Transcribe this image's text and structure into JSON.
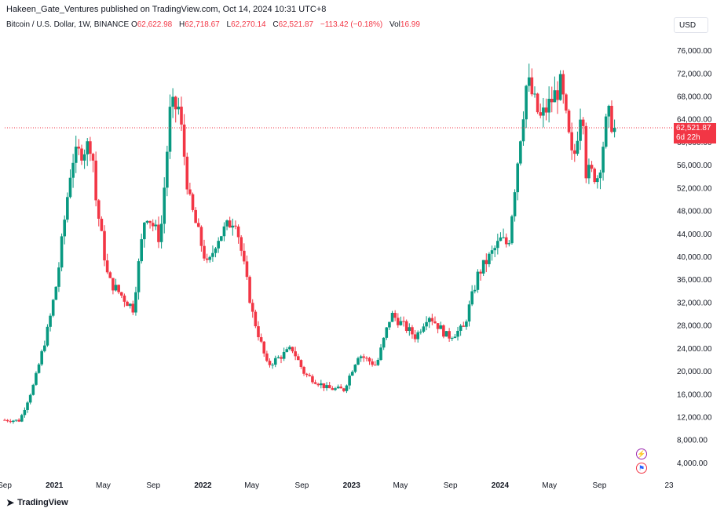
{
  "header": {
    "published": "Hakeen_Gate_Ventures published on TradingView.com, Oct 14, 2024 10:31 UTC+8"
  },
  "legend": {
    "symbol": "Bitcoin / U.S. Dollar, 1W, BINANCE",
    "o_label": "O",
    "o_value": "62,622.98",
    "h_label": "H",
    "h_value": "62,718.67",
    "l_label": "L",
    "l_value": "62,270.14",
    "c_label": "C",
    "c_value": "62,521.87",
    "change": "−113.42 (−0.18%)",
    "vol_label": "Vol",
    "vol_value": "16.99"
  },
  "currency": "USD",
  "price_tag": {
    "price": "62,521.87",
    "countdown": "6d 22h"
  },
  "footer": {
    "logo_text": "TradingView"
  },
  "colors": {
    "up": "#089981",
    "down": "#f23645",
    "last_price_line": "#f23645"
  },
  "icons": {
    "flash": "lightning-icon",
    "flag": "us-flag-icon",
    "logo": "tradingview-logo-icon"
  },
  "chart_data": {
    "type": "candlestick",
    "timeframe": "1W",
    "x_tick_labels": [
      "Sep",
      "2021",
      "May",
      "Sep",
      "2022",
      "May",
      "Sep",
      "2023",
      "May",
      "Sep",
      "2024",
      "May",
      "Sep",
      "23"
    ],
    "y_tick_labels": [
      "76,000.00",
      "72,000.00",
      "68,000.00",
      "64,000.00",
      "60,000.00",
      "56,000.00",
      "52,000.00",
      "48,000.00",
      "44,000.00",
      "40,000.00",
      "36,000.00",
      "32,000.00",
      "28,000.00",
      "24,000.00",
      "20,000.00",
      "16,000.00",
      "12,000.00",
      "8,000.00",
      "4,000.00"
    ],
    "ylim": [
      2000,
      78000
    ],
    "x_start": "2020-09-01",
    "last_price": 62521.87,
    "anchors": [
      [
        "2020-09-01",
        11500
      ],
      [
        "2020-10-15",
        11400
      ],
      [
        "2020-11-20",
        18000
      ],
      [
        "2020-12-25",
        28000
      ],
      [
        "2021-01-15",
        36000
      ],
      [
        "2021-02-20",
        57000
      ],
      [
        "2021-04-10",
        60000
      ],
      [
        "2021-04-20",
        50000
      ],
      [
        "2021-05-20",
        36000
      ],
      [
        "2021-06-25",
        33000
      ],
      [
        "2021-07-20",
        31000
      ],
      [
        "2021-08-20",
        48000
      ],
      [
        "2021-09-25",
        43000
      ],
      [
        "2021-10-20",
        66000
      ],
      [
        "2021-11-10",
        66000
      ],
      [
        "2021-12-05",
        50000
      ],
      [
        "2022-01-20",
        38000
      ],
      [
        "2022-02-10",
        43000
      ],
      [
        "2022-03-28",
        47000
      ],
      [
        "2022-05-10",
        30000
      ],
      [
        "2022-06-15",
        21000
      ],
      [
        "2022-08-15",
        24000
      ],
      [
        "2022-09-15",
        19500
      ],
      [
        "2022-11-10",
        17000
      ],
      [
        "2022-12-20",
        16800
      ],
      [
        "2023-01-25",
        23000
      ],
      [
        "2023-03-10",
        21000
      ],
      [
        "2023-04-15",
        30000
      ],
      [
        "2023-06-15",
        26000
      ],
      [
        "2023-07-15",
        30000
      ],
      [
        "2023-09-01",
        26000
      ],
      [
        "2023-10-10",
        27500
      ],
      [
        "2023-11-15",
        37000
      ],
      [
        "2024-01-10",
        43000
      ],
      [
        "2024-01-28",
        42000
      ],
      [
        "2024-02-28",
        62000
      ],
      [
        "2024-03-14",
        71000
      ],
      [
        "2024-04-15",
        64000
      ],
      [
        "2024-06-05",
        70000
      ],
      [
        "2024-07-05",
        56000
      ],
      [
        "2024-07-28",
        68000
      ],
      [
        "2024-08-05",
        55000
      ],
      [
        "2024-09-05",
        54000
      ],
      [
        "2024-09-28",
        65000
      ],
      [
        "2024-10-14",
        62521.87
      ]
    ]
  }
}
